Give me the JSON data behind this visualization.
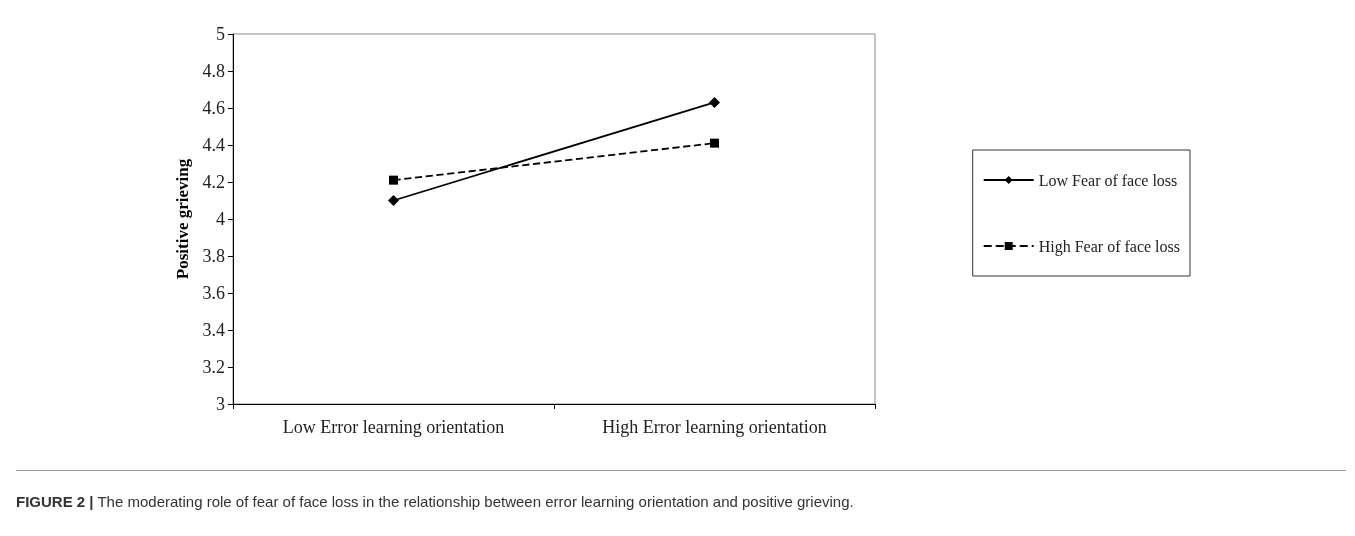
{
  "chart_data": {
    "type": "line",
    "ylabel": "Positive grieving",
    "categories": [
      "Low Error learning orientation",
      "High Error learning orientation"
    ],
    "series": [
      {
        "name": "Low Fear of face loss",
        "color": "#000000",
        "values": [
          4.1,
          4.63
        ],
        "marker": "diamond",
        "line_style": "solid"
      },
      {
        "name": "High Fear of face loss",
        "color": "#000000",
        "values": [
          4.21,
          4.41
        ],
        "marker": "square",
        "line_style": "dashed"
      }
    ],
    "ylim": [
      3,
      5
    ],
    "yticks": [
      3,
      3.2,
      3.4,
      3.6,
      3.8,
      4,
      4.2,
      4.4,
      4.6,
      4.8,
      5
    ],
    "grid": false,
    "legend": "right",
    "annotations": [
      "FIGURE 2 | The moderating role of fear of face loss in the relationship between error learning orientation and positive grieving."
    ]
  }
}
